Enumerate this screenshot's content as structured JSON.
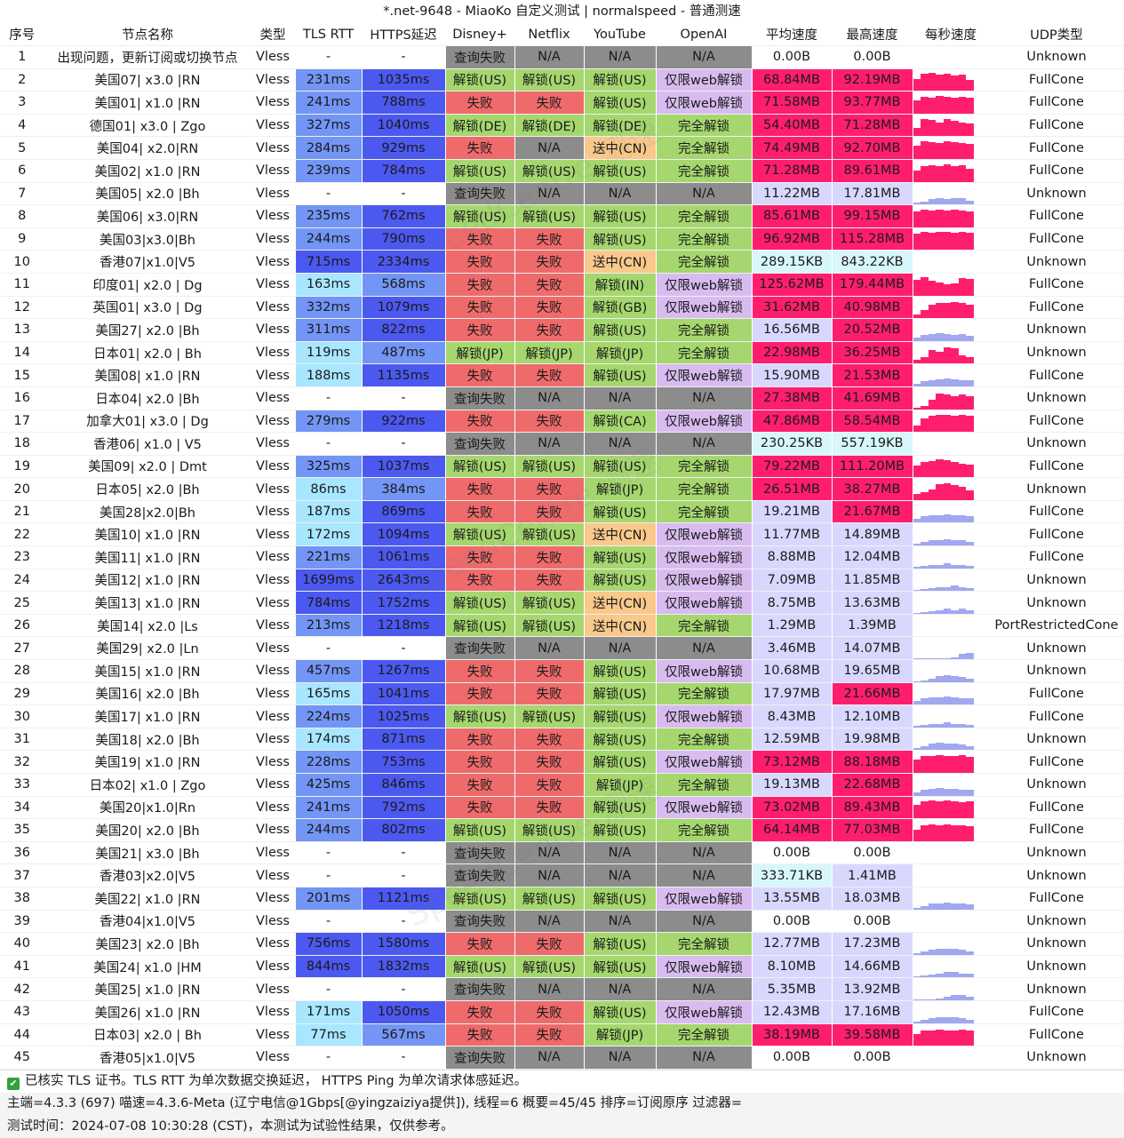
{
  "window_title": "*.net-9648 - MiaoKo 自定义测试 | normalspeed - 普通测速",
  "watermark_text": "SpeedCentre 测速",
  "columns": [
    "序号",
    "节点名称",
    "类型",
    "TLS RTT",
    "HTTPS延迟",
    "Disney+",
    "Netflix",
    "YouTube",
    "OpenAI",
    "平均速度",
    "最高速度",
    "每秒速度",
    "UDP类型"
  ],
  "colors": {
    "unlock": "#a5d76e",
    "fail": "#ef6b6b",
    "query_fail": "#8c8c8c",
    "na": "#8c8c8c",
    "cn": "#f9c88b",
    "web_only": "#d8bcf0",
    "full_unlock": "#a5d76e",
    "spark_high": "#ff1e6e",
    "spark_low": "#a0a8f0",
    "speed_high": "#ff1e6e",
    "speed_mid": "#d8d8ff",
    "speed_low": "#d8f7fb",
    "ping_low": "#a9e6ff",
    "ping_mid": "#7395f5",
    "ping_high": "#4c59f0"
  },
  "rows": [
    {
      "no": "1",
      "name": "出现问题，更新订阅或切换节点",
      "type": "Vless",
      "tls": "-",
      "https": "-",
      "disney": "查询失败",
      "netflix": "N/A",
      "youtube": "N/A",
      "openai": "N/A",
      "avg": "0.00B",
      "max": "0.00B",
      "spark": [],
      "udp": "Unknown"
    },
    {
      "no": "2",
      "name": "美国07| x3.0 |RN",
      "type": "Vless",
      "tls": "231ms",
      "https": "1035ms",
      "disney": "解锁(US)",
      "netflix": "解锁(US)",
      "youtube": "解锁(US)",
      "openai": "仅限web解锁",
      "avg": "68.84MB",
      "max": "92.19MB",
      "spark": [
        0.6,
        0.85,
        0.9,
        0.8,
        0.85,
        0.75,
        0.8,
        0.55
      ],
      "udp": "FullCone"
    },
    {
      "no": "3",
      "name": "美国01| x1.0 |RN",
      "type": "Vless",
      "tls": "241ms",
      "https": "788ms",
      "disney": "失败",
      "netflix": "失败",
      "youtube": "解锁(US)",
      "openai": "仅限web解锁",
      "avg": "71.58MB",
      "max": "93.77MB",
      "spark": [
        0.7,
        0.85,
        0.8,
        0.9,
        0.85,
        0.8,
        0.85,
        0.8
      ],
      "udp": "FullCone"
    },
    {
      "no": "4",
      "name": "德国01| x3.0 | Zgo",
      "type": "Vless",
      "tls": "327ms",
      "https": "1040ms",
      "disney": "解锁(DE)",
      "netflix": "解锁(DE)",
      "youtube": "解锁(DE)",
      "openai": "完全解锁",
      "avg": "54.40MB",
      "max": "71.28MB",
      "spark": [
        0.4,
        0.85,
        0.8,
        0.7,
        0.85,
        0.75,
        0.7,
        0.65
      ],
      "udp": "FullCone"
    },
    {
      "no": "5",
      "name": "美国04| x2.0|RN",
      "type": "Vless",
      "tls": "284ms",
      "https": "929ms",
      "disney": "失败",
      "netflix": "N/A",
      "youtube": "送中(CN)",
      "openai": "完全解锁",
      "avg": "74.49MB",
      "max": "92.70MB",
      "spark": [
        0.7,
        0.9,
        0.85,
        0.8,
        0.9,
        0.85,
        0.8,
        0.75
      ],
      "udp": "FullCone"
    },
    {
      "no": "6",
      "name": "美国02| x1.0 |RN",
      "type": "Vless",
      "tls": "239ms",
      "https": "784ms",
      "disney": "解锁(US)",
      "netflix": "解锁(US)",
      "youtube": "解锁(US)",
      "openai": "完全解锁",
      "avg": "71.28MB",
      "max": "89.61MB",
      "spark": [
        0.6,
        0.8,
        0.85,
        0.8,
        0.9,
        0.8,
        0.85,
        0.7
      ],
      "udp": "FullCone"
    },
    {
      "no": "7",
      "name": "美国05| x2.0 |Bh",
      "type": "Vless",
      "tls": "-",
      "https": "-",
      "disney": "查询失败",
      "netflix": "N/A",
      "youtube": "N/A",
      "openai": "N/A",
      "avg": "11.22MB",
      "max": "17.81MB",
      "spark": [
        0.1,
        0.15,
        0.25,
        0.3,
        0.25,
        0.3,
        0.3,
        0.2
      ],
      "udp": "Unknown"
    },
    {
      "no": "8",
      "name": "美国06| x3.0|RN",
      "type": "Vless",
      "tls": "235ms",
      "https": "762ms",
      "disney": "解锁(US)",
      "netflix": "解锁(US)",
      "youtube": "解锁(US)",
      "openai": "完全解锁",
      "avg": "85.61MB",
      "max": "99.15MB",
      "spark": [
        0.8,
        0.9,
        0.85,
        0.9,
        0.85,
        0.9,
        0.85,
        0.8
      ],
      "udp": "FullCone"
    },
    {
      "no": "9",
      "name": "美国03|x3.0|Bh",
      "type": "Vless",
      "tls": "244ms",
      "https": "790ms",
      "disney": "失败",
      "netflix": "失败",
      "youtube": "解锁(US)",
      "openai": "完全解锁",
      "avg": "96.92MB",
      "max": "115.28MB",
      "spark": [
        0.8,
        0.9,
        0.85,
        0.9,
        0.9,
        0.85,
        0.9,
        0.85
      ],
      "udp": "FullCone"
    },
    {
      "no": "10",
      "name": "香港07|x1.0|V5",
      "type": "Vless",
      "tls": "715ms",
      "https": "2334ms",
      "disney": "失败",
      "netflix": "失败",
      "youtube": "送中(CN)",
      "openai": "完全解锁",
      "avg": "289.15KB",
      "max": "843.22KB",
      "spark": [],
      "udp": "Unknown"
    },
    {
      "no": "11",
      "name": "印度01| x2.0 | Dg",
      "type": "Vless",
      "tls": "163ms",
      "https": "568ms",
      "disney": "失败",
      "netflix": "失败",
      "youtube": "解锁(IN)",
      "openai": "仅限web解锁",
      "avg": "125.62MB",
      "max": "179.44MB",
      "spark": [
        0.8,
        0.95,
        0.75,
        0.7,
        0.6,
        0.65,
        0.9,
        0.85
      ],
      "udp": "FullCone"
    },
    {
      "no": "12",
      "name": "英国01| x3.0 | Dg",
      "type": "Vless",
      "tls": "332ms",
      "https": "1079ms",
      "disney": "失败",
      "netflix": "失败",
      "youtube": "解锁(GB)",
      "openai": "仅限web解锁",
      "avg": "31.62MB",
      "max": "40.98MB",
      "spark": [
        0.2,
        0.4,
        0.7,
        0.75,
        0.75,
        0.8,
        0.75,
        0.7
      ],
      "udp": "FullCone"
    },
    {
      "no": "13",
      "name": "美国27| x2.0 |Bh",
      "type": "Vless",
      "tls": "311ms",
      "https": "822ms",
      "disney": "失败",
      "netflix": "失败",
      "youtube": "解锁(US)",
      "openai": "完全解锁",
      "avg": "16.56MB",
      "max": "20.52MB",
      "spark": [
        0.2,
        0.3,
        0.35,
        0.4,
        0.35,
        0.3,
        0.35,
        0.25
      ],
      "udp": "Unknown"
    },
    {
      "no": "14",
      "name": "日本01| x2.0 | Bh",
      "type": "Vless",
      "tls": "119ms",
      "https": "487ms",
      "disney": "解锁(JP)",
      "netflix": "解锁(JP)",
      "youtube": "解锁(JP)",
      "openai": "完全解锁",
      "avg": "22.98MB",
      "max": "36.25MB",
      "spark": [
        0.2,
        0.3,
        0.7,
        0.6,
        0.8,
        0.75,
        0.4,
        0.3
      ],
      "udp": "Unknown"
    },
    {
      "no": "15",
      "name": "美国08| x1.0 |RN",
      "type": "Vless",
      "tls": "188ms",
      "https": "1135ms",
      "disney": "失败",
      "netflix": "失败",
      "youtube": "解锁(US)",
      "openai": "仅限web解锁",
      "avg": "15.90MB",
      "max": "21.53MB",
      "spark": [
        0.15,
        0.25,
        0.3,
        0.35,
        0.4,
        0.35,
        0.3,
        0.3
      ],
      "udp": "FullCone"
    },
    {
      "no": "16",
      "name": "日本04| x2.0 |Bh",
      "type": "Vless",
      "tls": "-",
      "https": "-",
      "disney": "查询失败",
      "netflix": "N/A",
      "youtube": "N/A",
      "openai": "N/A",
      "avg": "27.38MB",
      "max": "41.69MB",
      "spark": [
        0.1,
        0.2,
        0.5,
        0.8,
        0.75,
        0.7,
        0.75,
        0.7
      ],
      "udp": "Unknown"
    },
    {
      "no": "17",
      "name": "加拿大01| x3.0 | Dg",
      "type": "Vless",
      "tls": "279ms",
      "https": "922ms",
      "disney": "失败",
      "netflix": "失败",
      "youtube": "解锁(CA)",
      "openai": "仅限web解锁",
      "avg": "47.86MB",
      "max": "58.54MB",
      "spark": [
        0.3,
        0.7,
        0.8,
        0.85,
        0.85,
        0.8,
        0.85,
        0.8
      ],
      "udp": "FullCone"
    },
    {
      "no": "18",
      "name": "香港06| x1.0 | V5",
      "type": "Vless",
      "tls": "-",
      "https": "-",
      "disney": "查询失败",
      "netflix": "N/A",
      "youtube": "N/A",
      "openai": "N/A",
      "avg": "230.25KB",
      "max": "557.19KB",
      "spark": [],
      "udp": "Unknown"
    },
    {
      "no": "19",
      "name": "美国09| x2.0 | Dmt",
      "type": "Vless",
      "tls": "325ms",
      "https": "1037ms",
      "disney": "解锁(US)",
      "netflix": "解锁(US)",
      "youtube": "解锁(US)",
      "openai": "完全解锁",
      "avg": "79.22MB",
      "max": "111.20MB",
      "spark": [
        0.6,
        0.75,
        0.8,
        0.9,
        0.85,
        0.75,
        0.7,
        0.65
      ],
      "udp": "FullCone"
    },
    {
      "no": "20",
      "name": "日本05| x2.0 |Bh",
      "type": "Vless",
      "tls": "86ms",
      "https": "384ms",
      "disney": "失败",
      "netflix": "失败",
      "youtube": "解锁(JP)",
      "openai": "完全解锁",
      "avg": "26.51MB",
      "max": "38.27MB",
      "spark": [
        0.3,
        0.4,
        0.55,
        0.8,
        0.85,
        0.75,
        0.7,
        0.5
      ],
      "udp": "Unknown"
    },
    {
      "no": "21",
      "name": "美国28|x2.0|Bh",
      "type": "Vless",
      "tls": "187ms",
      "https": "869ms",
      "disney": "失败",
      "netflix": "失败",
      "youtube": "解锁(US)",
      "openai": "完全解锁",
      "avg": "19.21MB",
      "max": "21.67MB",
      "spark": [
        0.2,
        0.3,
        0.35,
        0.35,
        0.4,
        0.35,
        0.35,
        0.3
      ],
      "udp": "FullCone"
    },
    {
      "no": "22",
      "name": "美国10| x1.0 |RN",
      "type": "Vless",
      "tls": "172ms",
      "https": "1094ms",
      "disney": "解锁(US)",
      "netflix": "解锁(US)",
      "youtube": "送中(CN)",
      "openai": "仅限web解锁",
      "avg": "11.77MB",
      "max": "14.89MB",
      "spark": [
        0.1,
        0.2,
        0.25,
        0.25,
        0.3,
        0.25,
        0.25,
        0.2
      ],
      "udp": "FullCone"
    },
    {
      "no": "23",
      "name": "美国11| x1.0 |RN",
      "type": "Vless",
      "tls": "221ms",
      "https": "1061ms",
      "disney": "失败",
      "netflix": "失败",
      "youtube": "解锁(US)",
      "openai": "仅限web解锁",
      "avg": "8.88MB",
      "max": "12.04MB",
      "spark": [
        0.1,
        0.15,
        0.2,
        0.2,
        0.25,
        0.2,
        0.2,
        0.15
      ],
      "udp": "FullCone"
    },
    {
      "no": "24",
      "name": "美国12| x1.0 |RN",
      "type": "Vless",
      "tls": "1699ms",
      "https": "2643ms",
      "disney": "失败",
      "netflix": "失败",
      "youtube": "解锁(US)",
      "openai": "仅限web解锁",
      "avg": "7.09MB",
      "max": "11.85MB",
      "spark": [
        0.05,
        0.1,
        0.15,
        0.2,
        0.2,
        0.25,
        0.2,
        0.15
      ],
      "udp": "Unknown"
    },
    {
      "no": "25",
      "name": "美国13| x1.0 |RN",
      "type": "Vless",
      "tls": "784ms",
      "https": "1752ms",
      "disney": "解锁(US)",
      "netflix": "解锁(US)",
      "youtube": "送中(CN)",
      "openai": "仅限web解锁",
      "avg": "8.75MB",
      "max": "13.63MB",
      "spark": [
        0.05,
        0.1,
        0.15,
        0.2,
        0.25,
        0.2,
        0.25,
        0.2
      ],
      "udp": "Unknown"
    },
    {
      "no": "26",
      "name": "美国14| x2.0 |Ls",
      "type": "Vless",
      "tls": "213ms",
      "https": "1218ms",
      "disney": "解锁(US)",
      "netflix": "解锁(US)",
      "youtube": "送中(CN)",
      "openai": "完全解锁",
      "avg": "1.29MB",
      "max": "1.39MB",
      "spark": [],
      "udp": "PortRestrictedCone"
    },
    {
      "no": "27",
      "name": "美国29| x2.0 |Ln",
      "type": "Vless",
      "tls": "-",
      "https": "-",
      "disney": "查询失败",
      "netflix": "N/A",
      "youtube": "N/A",
      "openai": "N/A",
      "avg": "3.46MB",
      "max": "14.07MB",
      "spark": [
        0,
        0,
        0,
        0,
        0,
        0.1,
        0.25,
        0.3
      ],
      "udp": "Unknown"
    },
    {
      "no": "28",
      "name": "美国15| x1.0 |RN",
      "type": "Vless",
      "tls": "457ms",
      "https": "1267ms",
      "disney": "失败",
      "netflix": "失败",
      "youtube": "解锁(US)",
      "openai": "仅限web解锁",
      "avg": "10.68MB",
      "max": "19.65MB",
      "spark": [
        0.05,
        0.1,
        0.2,
        0.3,
        0.35,
        0.3,
        0.25,
        0.2
      ],
      "udp": "Unknown"
    },
    {
      "no": "29",
      "name": "美国16| x2.0 |Bh",
      "type": "Vless",
      "tls": "165ms",
      "https": "1041ms",
      "disney": "失败",
      "netflix": "失败",
      "youtube": "解锁(US)",
      "openai": "完全解锁",
      "avg": "17.97MB",
      "max": "21.66MB",
      "spark": [
        0.2,
        0.3,
        0.35,
        0.35,
        0.4,
        0.35,
        0.3,
        0.3
      ],
      "udp": "FullCone"
    },
    {
      "no": "30",
      "name": "美国17| x1.0 |RN",
      "type": "Vless",
      "tls": "224ms",
      "https": "1025ms",
      "disney": "解锁(US)",
      "netflix": "解锁(US)",
      "youtube": "解锁(US)",
      "openai": "仅限web解锁",
      "avg": "8.43MB",
      "max": "12.10MB",
      "spark": [
        0.1,
        0.15,
        0.2,
        0.2,
        0.25,
        0.2,
        0.2,
        0.15
      ],
      "udp": "FullCone"
    },
    {
      "no": "31",
      "name": "美国18| x2.0 |Bh",
      "type": "Vless",
      "tls": "174ms",
      "https": "871ms",
      "disney": "失败",
      "netflix": "失败",
      "youtube": "解锁(US)",
      "openai": "完全解锁",
      "avg": "12.59MB",
      "max": "19.98MB",
      "spark": [
        0.1,
        0.2,
        0.3,
        0.35,
        0.3,
        0.3,
        0.25,
        0.2
      ],
      "udp": "Unknown"
    },
    {
      "no": "32",
      "name": "美国19| x1.0 |RN",
      "type": "Vless",
      "tls": "228ms",
      "https": "753ms",
      "disney": "失败",
      "netflix": "失败",
      "youtube": "解锁(US)",
      "openai": "仅限web解锁",
      "avg": "73.12MB",
      "max": "88.18MB",
      "spark": [
        0.7,
        0.85,
        0.85,
        0.9,
        0.85,
        0.85,
        0.9,
        0.8
      ],
      "udp": "FullCone"
    },
    {
      "no": "33",
      "name": "日本02| x1.0 | Zgo",
      "type": "Vless",
      "tls": "425ms",
      "https": "846ms",
      "disney": "失败",
      "netflix": "失败",
      "youtube": "解锁(JP)",
      "openai": "完全解锁",
      "avg": "19.13MB",
      "max": "22.68MB",
      "spark": [
        0.2,
        0.3,
        0.35,
        0.4,
        0.35,
        0.35,
        0.3,
        0.3
      ],
      "udp": "Unknown"
    },
    {
      "no": "34",
      "name": "美国20|x1.0|Rn",
      "type": "Vless",
      "tls": "241ms",
      "https": "792ms",
      "disney": "失败",
      "netflix": "失败",
      "youtube": "解锁(US)",
      "openai": "仅限web解锁",
      "avg": "73.02MB",
      "max": "89.43MB",
      "spark": [
        0.7,
        0.85,
        0.9,
        0.85,
        0.9,
        0.85,
        0.8,
        0.85
      ],
      "udp": "FullCone"
    },
    {
      "no": "35",
      "name": "美国20| x2.0 |Bh",
      "type": "Vless",
      "tls": "244ms",
      "https": "802ms",
      "disney": "解锁(US)",
      "netflix": "解锁(US)",
      "youtube": "解锁(US)",
      "openai": "完全解锁",
      "avg": "64.14MB",
      "max": "77.03MB",
      "spark": [
        0.6,
        0.8,
        0.85,
        0.8,
        0.85,
        0.8,
        0.8,
        0.75
      ],
      "udp": "FullCone"
    },
    {
      "no": "36",
      "name": "美国21| x3.0 |Bh",
      "type": "Vless",
      "tls": "-",
      "https": "-",
      "disney": "查询失败",
      "netflix": "N/A",
      "youtube": "N/A",
      "openai": "N/A",
      "avg": "0.00B",
      "max": "0.00B",
      "spark": [],
      "udp": "Unknown"
    },
    {
      "no": "37",
      "name": "香港03|x2.0|V5",
      "type": "Vless",
      "tls": "-",
      "https": "-",
      "disney": "查询失败",
      "netflix": "N/A",
      "youtube": "N/A",
      "openai": "N/A",
      "avg": "333.71KB",
      "max": "1.41MB",
      "spark": [],
      "udp": "Unknown"
    },
    {
      "no": "38",
      "name": "美国22| x1.0 |RN",
      "type": "Vless",
      "tls": "201ms",
      "https": "1121ms",
      "disney": "解锁(US)",
      "netflix": "解锁(US)",
      "youtube": "解锁(US)",
      "openai": "仅限web解锁",
      "avg": "13.55MB",
      "max": "18.03MB",
      "spark": [
        0.1,
        0.2,
        0.3,
        0.3,
        0.35,
        0.3,
        0.3,
        0.25
      ],
      "udp": "FullCone"
    },
    {
      "no": "39",
      "name": "香港04|x1.0|V5",
      "type": "Vless",
      "tls": "-",
      "https": "-",
      "disney": "查询失败",
      "netflix": "N/A",
      "youtube": "N/A",
      "openai": "N/A",
      "avg": "0.00B",
      "max": "0.00B",
      "spark": [],
      "udp": "Unknown"
    },
    {
      "no": "40",
      "name": "美国23| x2.0 |Bh",
      "type": "Vless",
      "tls": "756ms",
      "https": "1580ms",
      "disney": "失败",
      "netflix": "失败",
      "youtube": "解锁(US)",
      "openai": "完全解锁",
      "avg": "12.77MB",
      "max": "17.23MB",
      "spark": [
        0.1,
        0.2,
        0.25,
        0.3,
        0.3,
        0.3,
        0.25,
        0.2
      ],
      "udp": "Unknown"
    },
    {
      "no": "41",
      "name": "美国24| x1.0 |HM",
      "type": "Vless",
      "tls": "844ms",
      "https": "1832ms",
      "disney": "解锁(US)",
      "netflix": "解锁(US)",
      "youtube": "解锁(US)",
      "openai": "仅限web解锁",
      "avg": "8.10MB",
      "max": "14.66MB",
      "spark": [
        0.05,
        0.1,
        0.15,
        0.2,
        0.25,
        0.25,
        0.2,
        0.2
      ],
      "udp": "Unknown"
    },
    {
      "no": "42",
      "name": "美国25| x1.0 |RN",
      "type": "Vless",
      "tls": "-",
      "https": "-",
      "disney": "查询失败",
      "netflix": "N/A",
      "youtube": "N/A",
      "openai": "N/A",
      "avg": "5.35MB",
      "max": "13.92MB",
      "spark": [
        0,
        0,
        0.05,
        0.1,
        0.2,
        0.25,
        0.25,
        0.2
      ],
      "udp": "Unknown"
    },
    {
      "no": "43",
      "name": "美国26| x1.0 |RN",
      "type": "Vless",
      "tls": "171ms",
      "https": "1050ms",
      "disney": "失败",
      "netflix": "失败",
      "youtube": "解锁(US)",
      "openai": "仅限web解锁",
      "avg": "12.43MB",
      "max": "17.16MB",
      "spark": [
        0.1,
        0.2,
        0.25,
        0.3,
        0.3,
        0.3,
        0.25,
        0.2
      ],
      "udp": "FullCone"
    },
    {
      "no": "44",
      "name": "日本03| x2.0 | Bh",
      "type": "Vless",
      "tls": "77ms",
      "https": "567ms",
      "disney": "失败",
      "netflix": "失败",
      "youtube": "解锁(JP)",
      "openai": "完全解锁",
      "avg": "38.19MB",
      "max": "39.58MB",
      "spark": [
        0.6,
        0.75,
        0.75,
        0.8,
        0.75,
        0.75,
        0.8,
        0.75
      ],
      "udp": "FullCone"
    },
    {
      "no": "45",
      "name": "香港05|x1.0|V5",
      "type": "Vless",
      "tls": "-",
      "https": "-",
      "disney": "查询失败",
      "netflix": "N/A",
      "youtube": "N/A",
      "openai": "N/A",
      "avg": "0.00B",
      "max": "0.00B",
      "spark": [],
      "udp": "Unknown"
    }
  ],
  "footer": {
    "line1": "已核实 TLS 证书。TLS RTT 为单次数据交换延迟， HTTPS Ping 为单次请求体感延迟。",
    "line2": "主端=4.3.3 (697) 喵速=4.3.6-Meta (辽宁电信@1Gbps[@yingzaiziya提供]), 线程=6 概要=45/45 排序=订阅原序 过滤器=",
    "line3": "测试时间：2024-07-08 10:30:28 (CST)，本测试为试验性结果，仅供参考。"
  }
}
